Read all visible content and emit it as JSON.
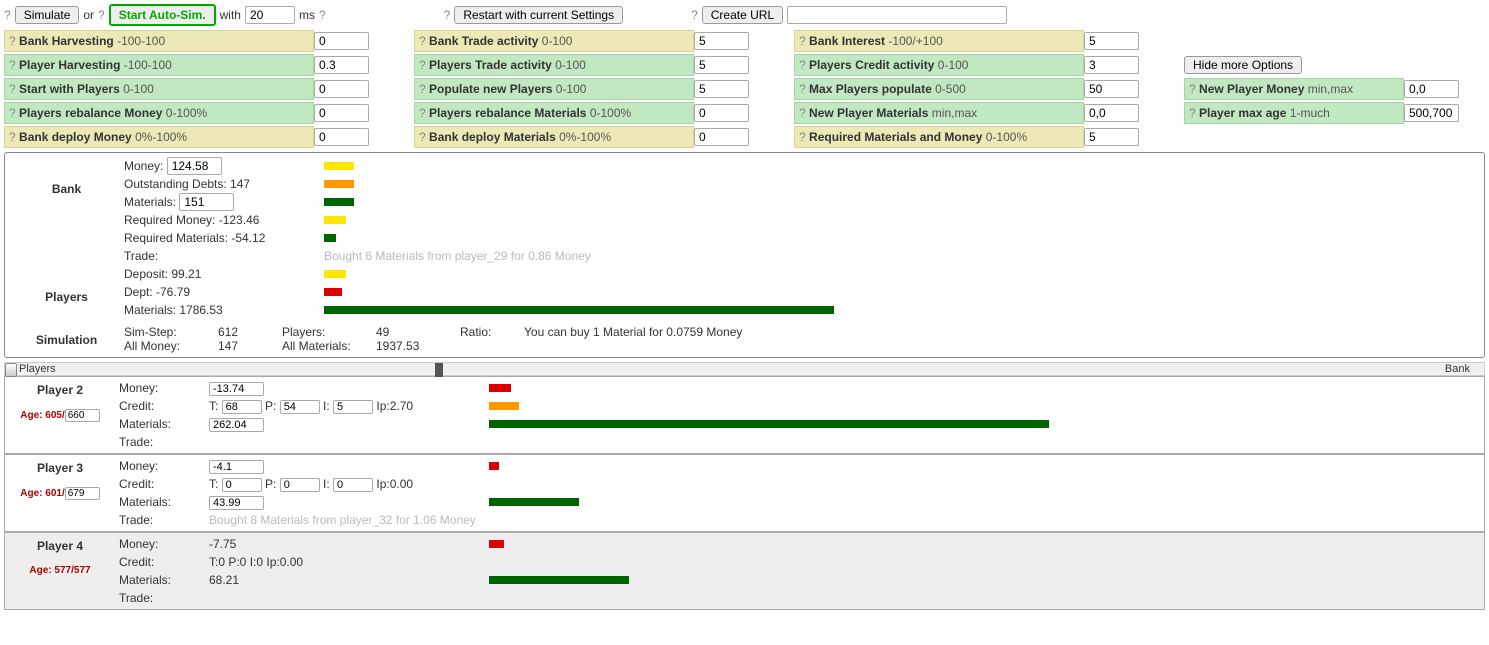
{
  "top": {
    "simulate_label": "Simulate",
    "or": "or",
    "auto_label": "Start Auto-Sim.",
    "with": "with",
    "ms_value": "20",
    "ms": "ms",
    "restart_label": "Restart with current Settings",
    "create_url_label": "Create URL",
    "create_url_value": "",
    "hide_more": "Hide more Options"
  },
  "settings": [
    {
      "row": [
        "Bank Harvesting",
        "-100-100",
        "0",
        "yellow",
        "Bank Trade activity",
        "0-100",
        "5",
        "yellow",
        "Bank Interest",
        "-100/+100",
        "5",
        "yellow",
        "",
        "",
        ""
      ]
    },
    {
      "row": [
        "Player Harvesting",
        "-100-100",
        "0.3",
        "green",
        "Players Trade activity",
        "0-100",
        "5",
        "green",
        "Players Credit activity",
        "0-100",
        "3",
        "green",
        "",
        "",
        ""
      ]
    },
    {
      "row": [
        "Start with Players",
        "0-100",
        "0",
        "green",
        "Populate new Players",
        "0-100",
        "5",
        "green",
        "Max Players populate",
        "0-500",
        "50",
        "green",
        "New Player Money",
        "min,max",
        "0,0"
      ]
    },
    {
      "row": [
        "Players rebalance Money",
        "0-100%",
        "0",
        "green",
        "Players rebalance Materials",
        "0-100%",
        "0",
        "green",
        "New Player Materials",
        "min,max",
        "0,0",
        "green",
        "Player max age",
        "1-much",
        "500,700"
      ]
    },
    {
      "row": [
        "Bank deploy Money",
        "0%-100%",
        "0",
        "yellow",
        "Bank deploy Materials",
        "0%-100%",
        "0",
        "yellow",
        "Required Materials and Money",
        "0-100%",
        "5",
        "yellow",
        "",
        "",
        ""
      ]
    }
  ],
  "bank": {
    "title": "Bank",
    "money_label": "Money:",
    "money_value": "124.58",
    "money_bar_w": 30,
    "money_bar_color": "yellow",
    "debts_label": "Outstanding Debts: 147",
    "debts_bar_w": 30,
    "debts_bar_color": "orange",
    "mat_label": "Materials:",
    "mat_value": "151",
    "mat_bar_w": 30,
    "mat_bar_color": "greenB",
    "reqmoney": "Required Money: -123.46",
    "reqmoney_bar_w": 22,
    "reqmoney_bar_color": "yellow",
    "reqmat": "Required Materials: -54.12",
    "reqmat_bar_w": 12,
    "reqmat_bar_color": "greenB",
    "trade_label": "Trade:",
    "trade_text": "Bought 6 Materials from player_29 for 0.86 Money"
  },
  "players_agg": {
    "title": "Players",
    "deposit": "Deposit: 99.21",
    "deposit_bar_w": 22,
    "deposit_bar_color": "yellow",
    "dept": "Dept: -76.79",
    "dept_bar_w": 18,
    "dept_bar_color": "redB",
    "mat": "Materials: 1786.53",
    "mat_bar_w": 510,
    "mat_bar_color": "greenB"
  },
  "sim": {
    "title": "Simulation",
    "step_label": "Sim-Step:",
    "step": "612",
    "allmoney_label": "All Money:",
    "allmoney": "147",
    "players_label": "Players:",
    "players": "49",
    "allmat_label": "All Materials:",
    "allmat": "1937.53",
    "ratio_label": "Ratio:",
    "ratio": "You can buy 1 Material for 0.0759 Money"
  },
  "slider": {
    "left": "Players",
    "right": "Bank"
  },
  "player_cards": [
    {
      "name": "Player 2",
      "shaded": false,
      "age_prefix": "Age: 605/",
      "age_input": "660",
      "money": "-13.74",
      "money_bar_w": 22,
      "money_bar_color": "redB",
      "credit_T": "68",
      "credit_P": "54",
      "credit_I": "5",
      "credit_Ip": "Ip:2.70",
      "credit_bar_w": 30,
      "credit_bar_color": "orange",
      "materials": "262.04",
      "mat_bar_w": 560,
      "mat_bar_color": "greenB",
      "trade": ""
    },
    {
      "name": "Player 3",
      "shaded": false,
      "age_prefix": "Age: 601/",
      "age_input": "679",
      "money": "-4.1",
      "money_bar_w": 10,
      "money_bar_color": "redB",
      "credit_T": "0",
      "credit_P": "0",
      "credit_I": "0",
      "credit_Ip": "Ip:0.00",
      "credit_bar_w": 0,
      "credit_bar_color": "orange",
      "materials": "43.99",
      "mat_bar_w": 90,
      "mat_bar_color": "greenB",
      "trade": "Bought 8 Materials from player_32 for 1.06 Money"
    },
    {
      "name": "Player 4",
      "shaded": true,
      "age_prefix": "Age: 577/577",
      "age_input": "",
      "money": "-7.75",
      "money_bar_w": 15,
      "money_bar_color": "redB",
      "credit_text": "T:0 P:0 I:0 Ip:0.00",
      "materials": "68.21",
      "mat_bar_w": 140,
      "mat_bar_color": "greenB",
      "trade": ""
    }
  ]
}
